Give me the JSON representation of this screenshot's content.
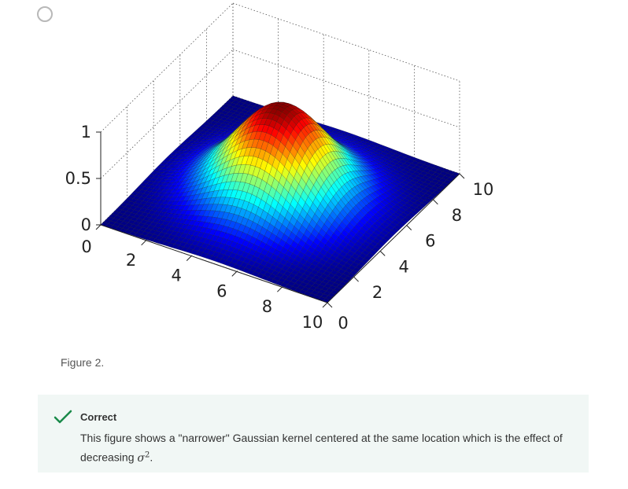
{
  "option": {
    "selected": false
  },
  "figure": {
    "caption": "Figure 2.",
    "z_ticks": [
      "0",
      "0.5",
      "1"
    ],
    "x_ticks": [
      "0",
      "2",
      "4",
      "6",
      "8",
      "10"
    ],
    "y_ticks": [
      "0",
      "2",
      "4",
      "6",
      "8",
      "10"
    ]
  },
  "chart_data": {
    "type": "surface",
    "title": "",
    "xlabel": "",
    "ylabel": "",
    "zlabel": "",
    "xlim": [
      0,
      10
    ],
    "ylim": [
      0,
      10
    ],
    "zlim": [
      0,
      1
    ],
    "function": "Gaussian kernel exp(-((x-5)^2 + (y-5)^2) / (2*sigma^2))",
    "center": [
      5,
      5
    ],
    "peak_value": 1,
    "grid": true,
    "colormap": "jet"
  },
  "feedback": {
    "status": "Correct",
    "status_color": "#1a8a4a",
    "text_before": "This figure shows a \"narrower\" Gaussian kernel centered at the same location which is the effect of decreasing ",
    "symbol": "σ",
    "exponent": "2",
    "text_after": "."
  }
}
